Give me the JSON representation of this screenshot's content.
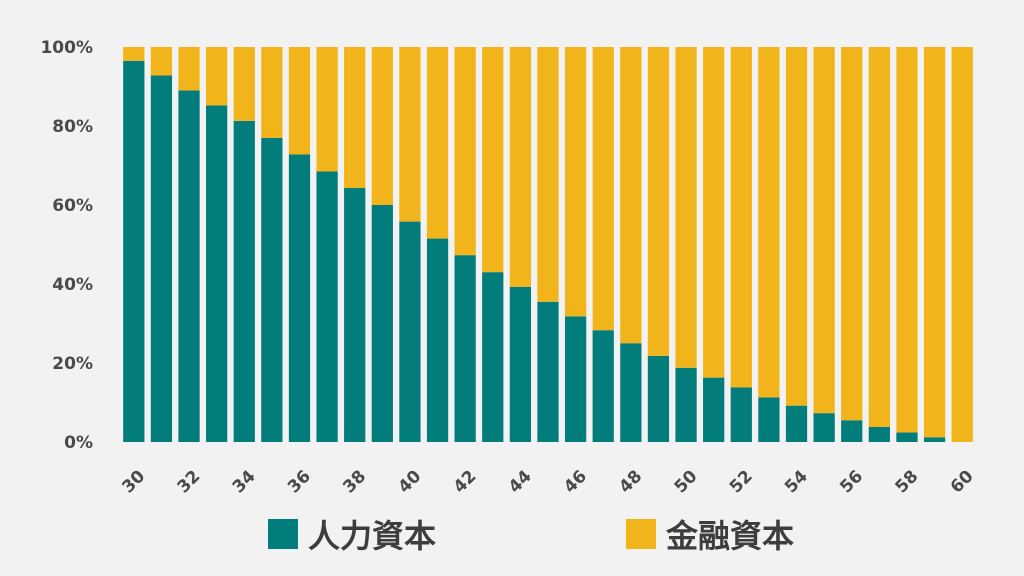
{
  "chart_data": {
    "type": "bar",
    "stacked": true,
    "percent_stacked": true,
    "categories": [
      "30",
      "31",
      "32",
      "33",
      "34",
      "35",
      "36",
      "37",
      "38",
      "39",
      "40",
      "41",
      "42",
      "43",
      "44",
      "45",
      "46",
      "47",
      "48",
      "49",
      "50",
      "51",
      "52",
      "53",
      "54",
      "55",
      "56",
      "57",
      "58",
      "59",
      "60"
    ],
    "x_tick_labels": [
      "30",
      "",
      "32",
      "",
      "34",
      "",
      "36",
      "",
      "38",
      "",
      "40",
      "",
      "42",
      "",
      "44",
      "",
      "46",
      "",
      "48",
      "",
      "50",
      "",
      "52",
      "",
      "54",
      "",
      "56",
      "",
      "58",
      "",
      "60"
    ],
    "series": [
      {
        "name": "人力資本",
        "color": "#037c7c",
        "values": [
          96.5,
          92.8,
          89.0,
          85.2,
          81.3,
          77.0,
          72.8,
          68.5,
          64.3,
          60.0,
          55.8,
          51.5,
          47.3,
          43.0,
          39.3,
          35.5,
          31.8,
          28.3,
          25.0,
          21.8,
          18.8,
          16.3,
          13.8,
          11.3,
          9.2,
          7.3,
          5.5,
          3.8,
          2.4,
          1.2,
          0
        ]
      },
      {
        "name": "金融資本",
        "color": "#f2b41b",
        "values": [
          3.5,
          7.2,
          11.0,
          14.8,
          18.7,
          23.0,
          27.2,
          31.5,
          35.7,
          40.0,
          44.2,
          48.5,
          52.7,
          57.0,
          60.7,
          64.5,
          68.2,
          71.7,
          75.0,
          78.2,
          81.2,
          83.7,
          86.2,
          88.7,
          90.8,
          92.7,
          94.5,
          96.2,
          97.6,
          98.8,
          100
        ]
      }
    ],
    "y_ticks": [
      "0%",
      "20%",
      "40%",
      "60%",
      "80%",
      "100%"
    ],
    "ylim": [
      0,
      100
    ],
    "grid": false,
    "legend_position": "bottom"
  }
}
